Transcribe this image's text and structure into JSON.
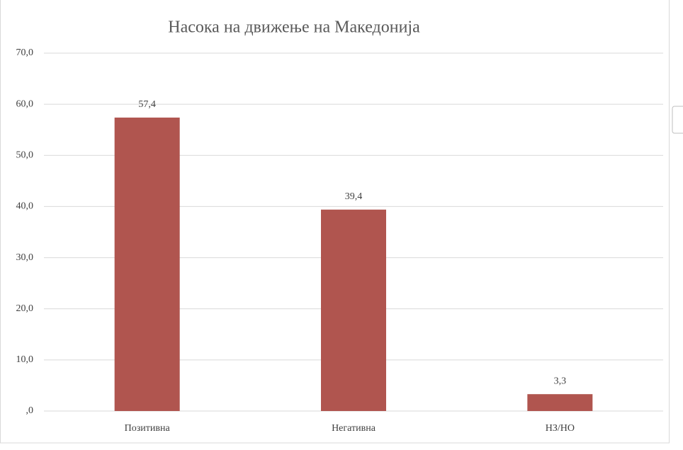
{
  "chart_data": {
    "type": "bar",
    "title": "Насока на движење на Македонија",
    "categories": [
      "Позитивна",
      "Негативна",
      "НЗ/НО"
    ],
    "values": [
      57.4,
      39.4,
      3.3
    ],
    "value_labels": [
      "57,4",
      "39,4",
      "3,3"
    ],
    "color": "#b0554f",
    "ylim": [
      0,
      70
    ],
    "yticks": [
      {
        "value": 0,
        "label": ",0"
      },
      {
        "value": 10,
        "label": "10,0"
      },
      {
        "value": 20,
        "label": "20,0"
      },
      {
        "value": 30,
        "label": "30,0"
      },
      {
        "value": 40,
        "label": "40,0"
      },
      {
        "value": 50,
        "label": "50,0"
      },
      {
        "value": 60,
        "label": "60,0"
      },
      {
        "value": 70,
        "label": "70,0"
      }
    ],
    "grid": true
  }
}
